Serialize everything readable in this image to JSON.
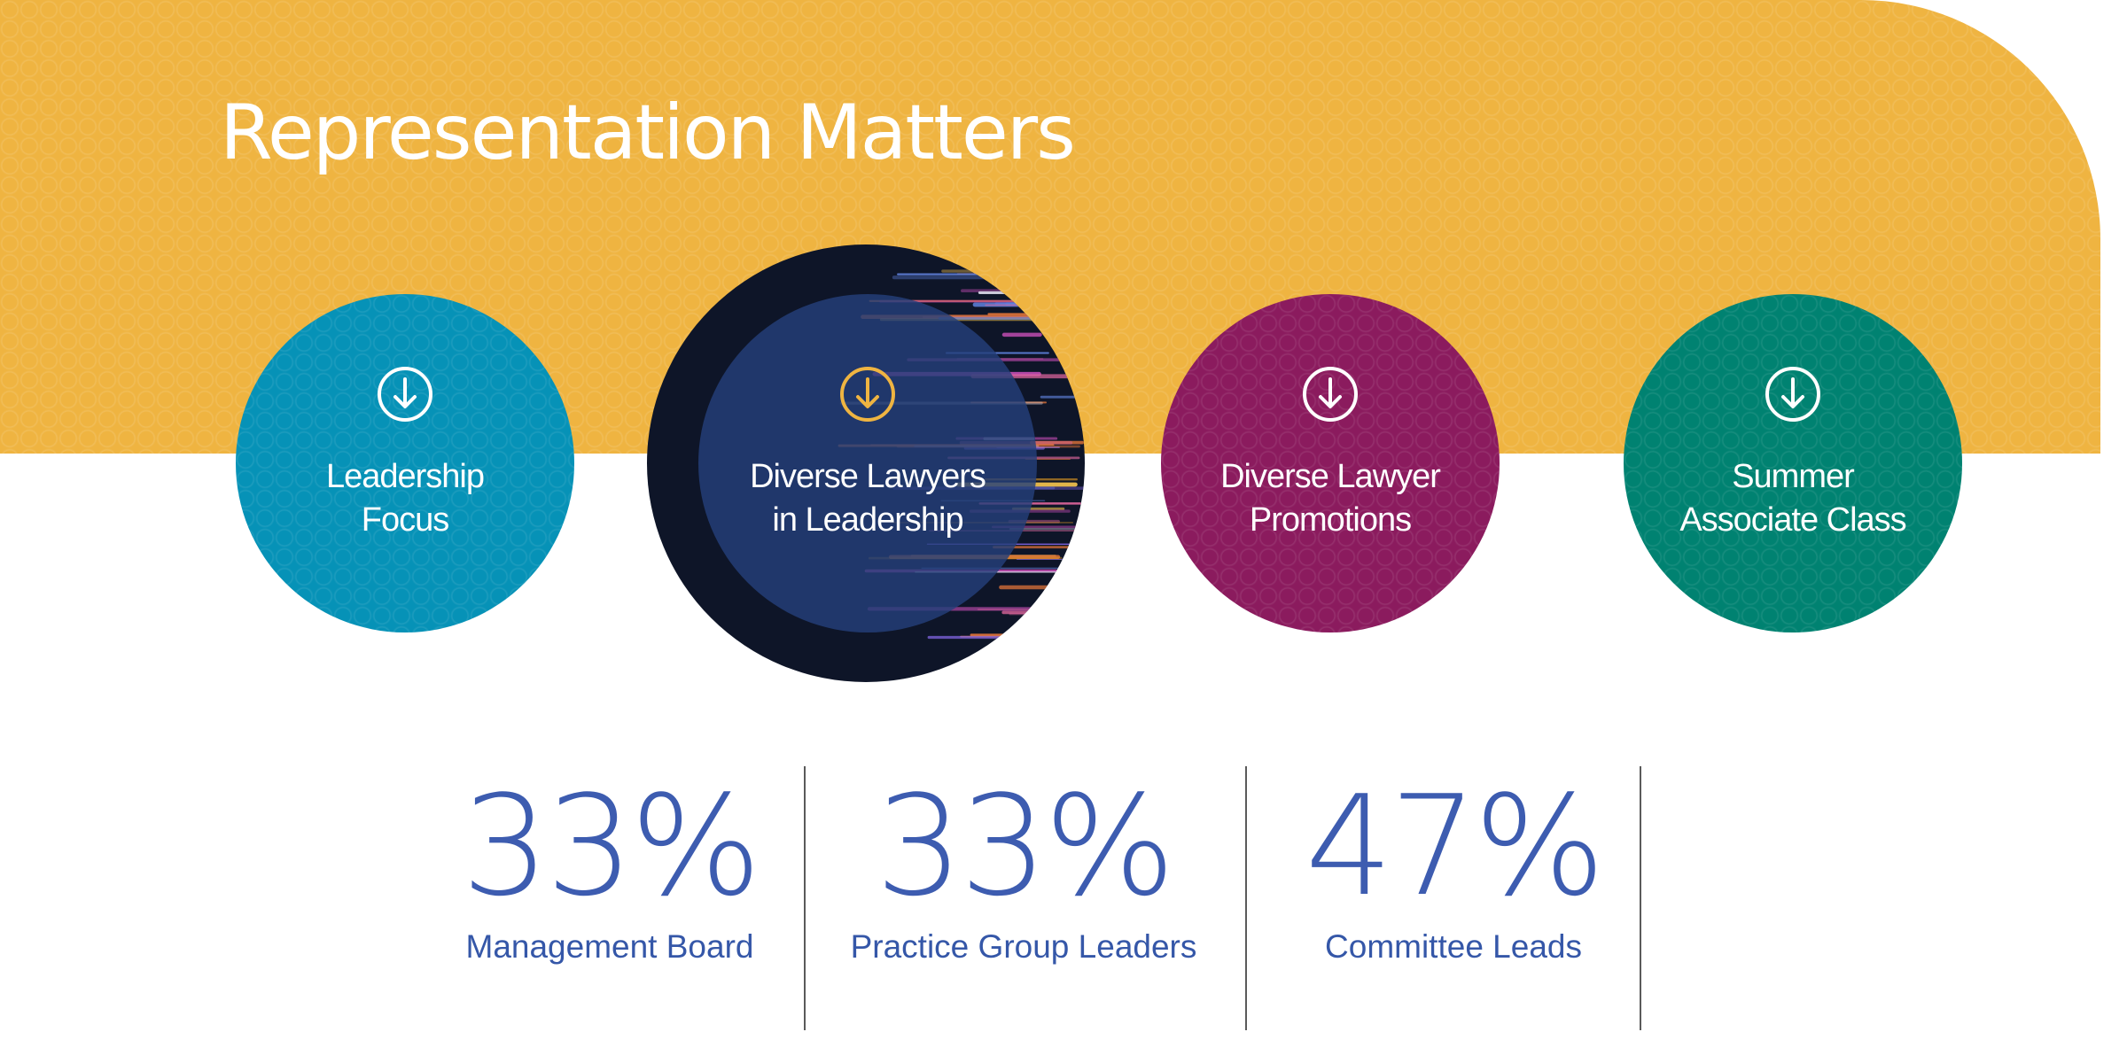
{
  "page": {
    "title": "Representation Matters"
  },
  "colors": {
    "banner": "#efb441",
    "leadership": "#0692b7",
    "feature_dark": "#0e1528",
    "promotions": "#8b1b5e",
    "summer": "#008271",
    "stat_text": "#3d5cb0"
  },
  "circles": [
    {
      "label": "Leadership\nFocus",
      "icon": "arrow-down-circle-icon"
    },
    {
      "label": "Diverse Lawyers\nin Leadership",
      "icon": "arrow-down-circle-icon"
    },
    {
      "label": "Diverse Lawyer\nPromotions",
      "icon": "arrow-down-circle-icon"
    },
    {
      "label": "Summer\nAssociate Class",
      "icon": "arrow-down-circle-icon"
    }
  ],
  "stats": [
    {
      "value": "33%",
      "caption": "Management Board"
    },
    {
      "value": "33%",
      "caption": "Practice Group Leaders"
    },
    {
      "value": "47%",
      "caption": "Committee Leads"
    }
  ]
}
